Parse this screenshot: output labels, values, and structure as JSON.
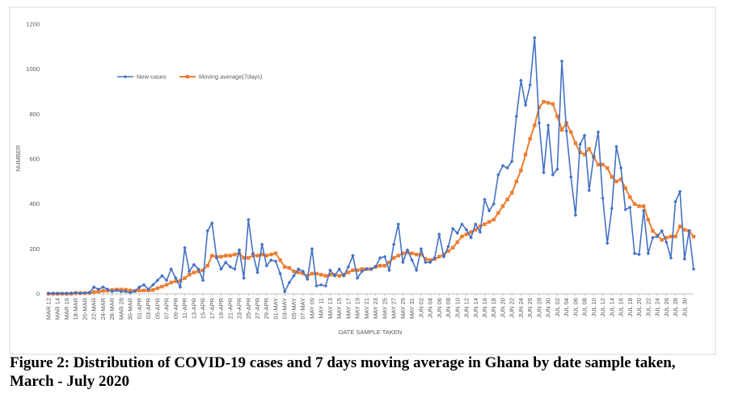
{
  "caption": "Figure 2: Distribution of COVID-19 cases and 7 days moving average in Ghana by date sample taken, March - July 2020",
  "chart_data": {
    "type": "line",
    "title": "",
    "xlabel": "DATE SAMPLE TAKEN",
    "ylabel": "NUMBER",
    "ylim": [
      0,
      1200
    ],
    "yticks": [
      0,
      200,
      400,
      600,
      800,
      1000,
      1200
    ],
    "grid": false,
    "legend_position": "top-left",
    "x_start": "MAR 12",
    "x_tick_labels": [
      "MAR 14",
      "MAR 16",
      "18-MAR",
      "20-MAR",
      "22-MAR",
      "24-MAR",
      "26-MAR",
      "MAR 28",
      "30-MAR",
      "01-APR",
      "03-APR",
      "05-APR",
      "07-APR",
      "09-APR",
      "11-APR",
      "13-APR",
      "15-APR",
      "17-APR",
      "19-APR",
      "21-APR",
      "23-APR",
      "25-APR",
      "27-APR",
      "29-APR",
      "01-MAY",
      "03-MAY",
      "05-MAY",
      "07-MAY",
      "MAY 09",
      "MAY 11",
      "MAY 13",
      "MAY 15",
      "MAY 17",
      "MAY 19",
      "MAY 21",
      "MAY 23",
      "MAY 25",
      "MAY 27",
      "MAY 29",
      "MAY 31",
      "JUN 02",
      "JUN 04",
      "JUN 06",
      "JUN 08",
      "JUN 10",
      "JUN 12",
      "JUN 14",
      "JUN 16",
      "JUN 18",
      "JUN 20",
      "JUN 22",
      "JUN 24",
      "JUN 26",
      "JUN 28",
      "JUN 30",
      "JUL 02",
      "JUL 04",
      "JUL 06",
      "JUL 08",
      "JUL 10",
      "JUL 12",
      "JUL 14",
      "JUL 16",
      "JUL 18",
      "JUL 20",
      "JUL 22",
      "JUL 24",
      "JUL 26",
      "JUL 28",
      "JUL 30"
    ],
    "series": [
      {
        "name": "New cases",
        "color": "#4472C4",
        "marker": "diamond",
        "values": [
          2,
          2,
          2,
          2,
          2,
          3,
          5,
          2,
          4,
          5,
          30,
          20,
          30,
          20,
          10,
          15,
          10,
          10,
          5,
          12,
          30,
          40,
          20,
          40,
          60,
          80,
          60,
          110,
          70,
          30,
          205,
          100,
          130,
          110,
          60,
          280,
          315,
          160,
          110,
          140,
          120,
          110,
          195,
          70,
          330,
          180,
          95,
          220,
          125,
          150,
          145,
          90,
          10,
          50,
          80,
          110,
          100,
          65,
          200,
          35,
          40,
          35,
          105,
          80,
          110,
          80,
          120,
          170,
          70,
          100,
          110,
          110,
          120,
          160,
          165,
          105,
          220,
          310,
          140,
          195,
          150,
          105,
          200,
          140,
          140,
          160,
          265,
          165,
          210,
          290,
          270,
          310,
          285,
          250,
          310,
          275,
          420,
          370,
          400,
          530,
          570,
          560,
          590,
          790,
          950,
          840,
          930,
          1140,
          760,
          540,
          750,
          530,
          555,
          1035,
          725,
          520,
          350,
          665,
          705,
          460,
          610,
          720,
          425,
          225,
          380,
          655,
          560,
          375,
          385,
          180,
          175,
          370,
          180,
          250,
          255,
          280,
          230,
          160,
          410,
          455,
          155,
          280,
          110
        ],
        "legend_label": "New cases"
      },
      {
        "name": "Moving average(7days)",
        "color": "#ED7D31",
        "marker": "square",
        "values": [
          0,
          0,
          0,
          0,
          0,
          0,
          3,
          3,
          3,
          4,
          8,
          10,
          13,
          14,
          17,
          19,
          19,
          18,
          15,
          13,
          15,
          15,
          15,
          17,
          25,
          32,
          40,
          50,
          56,
          58,
          70,
          85,
          95,
          100,
          105,
          125,
          170,
          165,
          165,
          170,
          170,
          175,
          180,
          160,
          160,
          170,
          170,
          175,
          170,
          175,
          180,
          150,
          120,
          115,
          100,
          95,
          90,
          80,
          90,
          90,
          85,
          80,
          85,
          85,
          80,
          85,
          95,
          105,
          105,
          110,
          110,
          110,
          120,
          125,
          125,
          140,
          160,
          170,
          180,
          185,
          180,
          175,
          175,
          155,
          150,
          155,
          165,
          175,
          190,
          205,
          230,
          255,
          265,
          275,
          285,
          300,
          310,
          320,
          330,
          360,
          390,
          420,
          450,
          500,
          550,
          620,
          690,
          750,
          830,
          855,
          850,
          845,
          790,
          730,
          760,
          720,
          670,
          630,
          620,
          645,
          610,
          575,
          575,
          560,
          520,
          500,
          510,
          470,
          430,
          400,
          390,
          390,
          330,
          280,
          260,
          240,
          250,
          255,
          255,
          300,
          285,
          280,
          255
        ]
      }
    ]
  }
}
